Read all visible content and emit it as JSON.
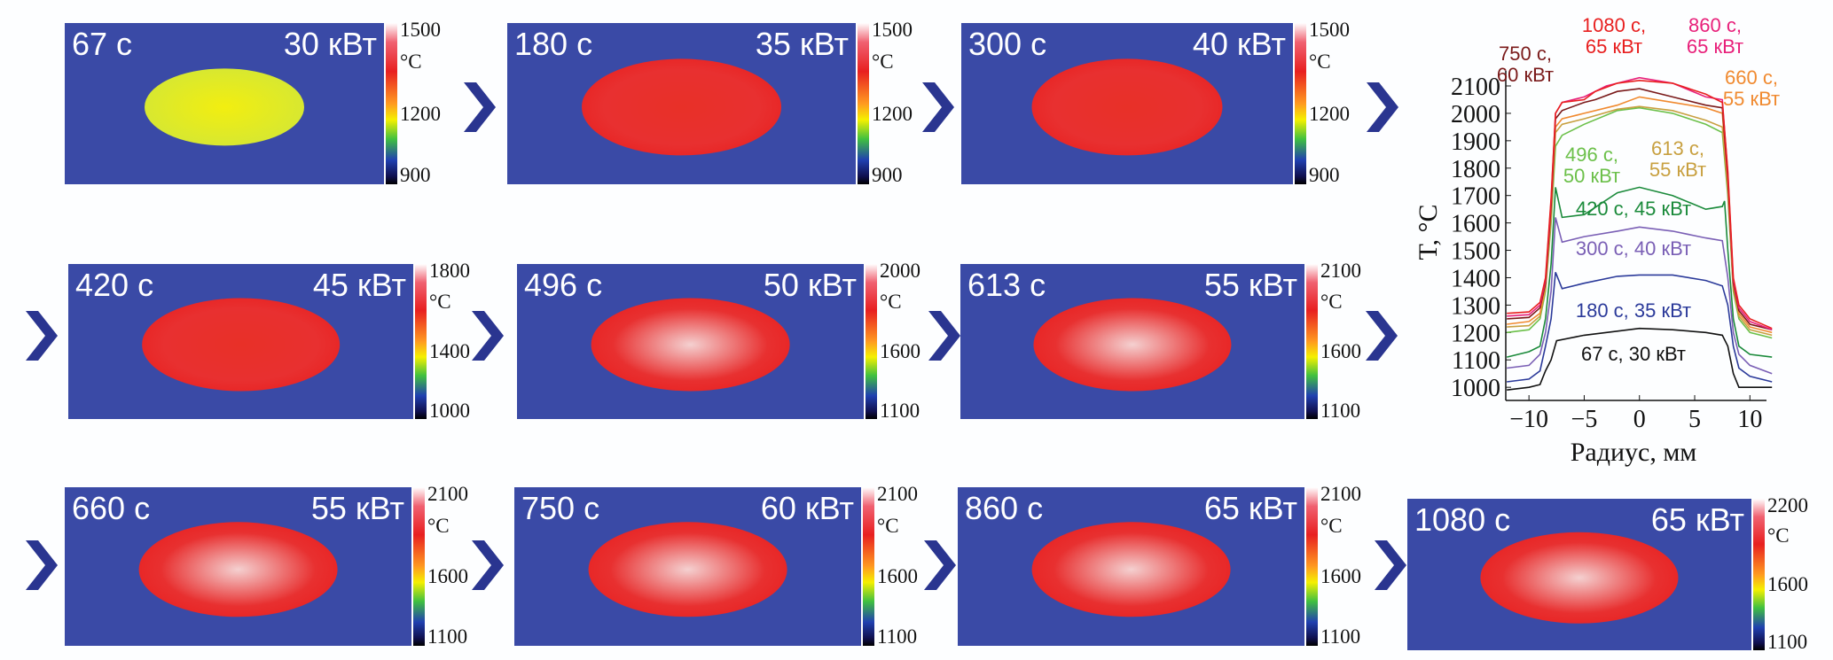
{
  "panels": [
    {
      "time": "67 с",
      "power": "30 кВт",
      "scale_max": "1500",
      "scale_mid": "1200",
      "scale_min": "900",
      "unit": "°C"
    },
    {
      "time": "180 с",
      "power": "35 кВт",
      "scale_max": "1500",
      "scale_mid": "1200",
      "scale_min": "900",
      "unit": "°C"
    },
    {
      "time": "300 с",
      "power": "40 кВт",
      "scale_max": "1500",
      "scale_mid": "1200",
      "scale_min": "900",
      "unit": "°C"
    },
    {
      "time": "420 с",
      "power": "45 кВт",
      "scale_max": "1800",
      "scale_mid": "1400",
      "scale_min": "1000",
      "unit": "°C"
    },
    {
      "time": "496 с",
      "power": "50 кВт",
      "scale_max": "2000",
      "scale_mid": "1600",
      "scale_min": "1100",
      "unit": "°C"
    },
    {
      "time": "613 с",
      "power": "55 кВт",
      "scale_max": "2100",
      "scale_mid": "1600",
      "scale_min": "1100",
      "unit": "°C"
    },
    {
      "time": "660 с",
      "power": "55 кВт",
      "scale_max": "2100",
      "scale_mid": "1600",
      "scale_min": "1100",
      "unit": "°C"
    },
    {
      "time": "750 с",
      "power": "60 кВт",
      "scale_max": "2100",
      "scale_mid": "1600",
      "scale_min": "1100",
      "unit": "°C"
    },
    {
      "time": "860 с",
      "power": "65 кВт",
      "scale_max": "2100",
      "scale_mid": "1600",
      "scale_min": "1100",
      "unit": "°C"
    },
    {
      "time": "1080 с",
      "power": "65 кВт",
      "scale_max": "2200",
      "scale_mid": "1600",
      "scale_min": "1100",
      "unit": "°C"
    }
  ],
  "arrow_color": "#2a3590",
  "chart_data": {
    "type": "line",
    "xlabel": "Радиус, мм",
    "ylabel": "T, °C",
    "xlim": [
      -12.1,
      11.5
    ],
    "ylim": [
      952,
      2155
    ],
    "xticks": [
      -10,
      -5,
      0,
      5,
      10
    ],
    "yticks": [
      1000,
      1100,
      1200,
      1300,
      1400,
      1500,
      1600,
      1700,
      1800,
      1900,
      2000,
      2100
    ],
    "grid": false,
    "series": [
      {
        "label_lines": [
          "67 с, 30 кВт"
        ],
        "color": "#111111",
        "x": [
          -12,
          -10,
          -9,
          -8.5,
          -8,
          -7.5,
          -5,
          -2,
          0,
          3,
          6,
          7.5,
          8,
          8.5,
          9,
          12
        ],
        "y": [
          990,
          1000,
          1010,
          1060,
          1100,
          1170,
          1190,
          1205,
          1215,
          1210,
          1200,
          1190,
          1150,
          1050,
          1000,
          1000
        ]
      },
      {
        "label_lines": [
          "180 с, 35 кВт"
        ],
        "color": "#2b3a9a",
        "x": [
          -12,
          -10,
          -9,
          -8.5,
          -8,
          -7.6,
          -7,
          -5,
          -2,
          0,
          3,
          6,
          7.5,
          8,
          8.5,
          9,
          10,
          12
        ],
        "y": [
          1020,
          1030,
          1060,
          1150,
          1250,
          1420,
          1360,
          1380,
          1405,
          1410,
          1410,
          1390,
          1370,
          1300,
          1150,
          1070,
          1040,
          1020
        ]
      },
      {
        "label_lines": [
          "300 с, 40 кВт"
        ],
        "color": "#7a5fb5",
        "x": [
          -12,
          -10,
          -9,
          -8.5,
          -8,
          -7.6,
          -7,
          -5,
          -2,
          0,
          3,
          6,
          7.5,
          8,
          8.5,
          9,
          10,
          12
        ],
        "y": [
          1070,
          1080,
          1120,
          1200,
          1350,
          1620,
          1530,
          1550,
          1570,
          1585,
          1570,
          1545,
          1535,
          1400,
          1200,
          1120,
          1080,
          1050
        ]
      },
      {
        "label_lines": [
          "420 с, 45 кВт"
        ],
        "color": "#1a8a3a",
        "x": [
          -12,
          -10,
          -9,
          -8.5,
          -8,
          -7.6,
          -7,
          -5,
          -2,
          0,
          3,
          6,
          7.5,
          7.7,
          8,
          8.5,
          9,
          10,
          12
        ],
        "y": [
          1110,
          1130,
          1150,
          1250,
          1450,
          1730,
          1620,
          1630,
          1710,
          1730,
          1700,
          1650,
          1660,
          1680,
          1500,
          1250,
          1150,
          1120,
          1110
        ]
      },
      {
        "label_lines": [
          "496 с,",
          "50 кВт"
        ],
        "color": "#6cc04a",
        "x": [
          -12,
          -10,
          -9,
          -8.5,
          -8,
          -7.6,
          -7,
          -5,
          -2,
          0,
          3,
          6,
          7.5,
          8,
          8.5,
          9,
          10,
          12
        ],
        "y": [
          1200,
          1210,
          1250,
          1350,
          1600,
          1880,
          1920,
          1960,
          2010,
          2020,
          2000,
          1960,
          1930,
          1700,
          1350,
          1250,
          1200,
          1180
        ]
      },
      {
        "label_lines": [
          "613 с,",
          "55 кВт"
        ],
        "color": "#c8a040",
        "x": [
          -12,
          -10,
          -9,
          -8.5,
          -8,
          -7.6,
          -7,
          -5,
          -2,
          0,
          3,
          6,
          7.5,
          8,
          8.5,
          9,
          10,
          12
        ],
        "y": [
          1220,
          1225,
          1260,
          1360,
          1620,
          1930,
          1960,
          1980,
          2015,
          2025,
          2010,
          1975,
          1950,
          1720,
          1360,
          1260,
          1210,
          1190
        ]
      },
      {
        "label_lines": [
          "660 с,",
          "55 кВт"
        ],
        "color": "#f08a30",
        "x": [
          -12,
          -10,
          -9,
          -8.5,
          -8,
          -7.6,
          -7,
          -5,
          -2,
          0,
          3,
          6,
          7.5,
          8,
          8.5,
          9,
          10,
          12
        ],
        "y": [
          1230,
          1240,
          1270,
          1370,
          1640,
          1950,
          1980,
          2000,
          2030,
          2060,
          2040,
          2020,
          2000,
          1740,
          1370,
          1270,
          1220,
          1200
        ]
      },
      {
        "label_lines": [
          "750 с,",
          "60 кВт"
        ],
        "color": "#7a1a1a",
        "x": [
          -12,
          -10,
          -9,
          -8.5,
          -8,
          -7.6,
          -7,
          -5,
          -4,
          -2,
          0,
          3,
          6,
          7.5,
          8,
          8.5,
          9,
          10,
          12
        ],
        "y": [
          1250,
          1255,
          1290,
          1380,
          1660,
          1980,
          2010,
          2040,
          2050,
          2080,
          2090,
          2060,
          2030,
          2020,
          1760,
          1380,
          1280,
          1230,
          1210
        ]
      },
      {
        "label_lines": [
          "860 с,",
          "65 кВт"
        ],
        "color": "#e8207a",
        "x": [
          -12,
          -10,
          -9,
          -8.5,
          -8,
          -7.6,
          -7,
          -5,
          -3,
          0,
          3,
          6,
          7.5,
          8,
          8.5,
          9,
          10,
          12
        ],
        "y": [
          1260,
          1265,
          1300,
          1390,
          1680,
          2000,
          2040,
          2060,
          2100,
          2130,
          2110,
          2060,
          2050,
          1780,
          1390,
          1290,
          1240,
          1210
        ]
      },
      {
        "label_lines": [
          "1080 с,",
          "65 кВт"
        ],
        "color": "#e82020",
        "x": [
          -12,
          -10,
          -9,
          -8.5,
          -8,
          -7.6,
          -7,
          -5,
          -4,
          -2,
          0,
          3,
          6,
          7.5,
          8,
          8.5,
          9,
          10,
          12
        ],
        "y": [
          1270,
          1275,
          1310,
          1400,
          1690,
          2000,
          2040,
          2050,
          2080,
          2110,
          2120,
          2110,
          2070,
          2040,
          1790,
          1400,
          1300,
          1250,
          1215
        ]
      }
    ]
  }
}
